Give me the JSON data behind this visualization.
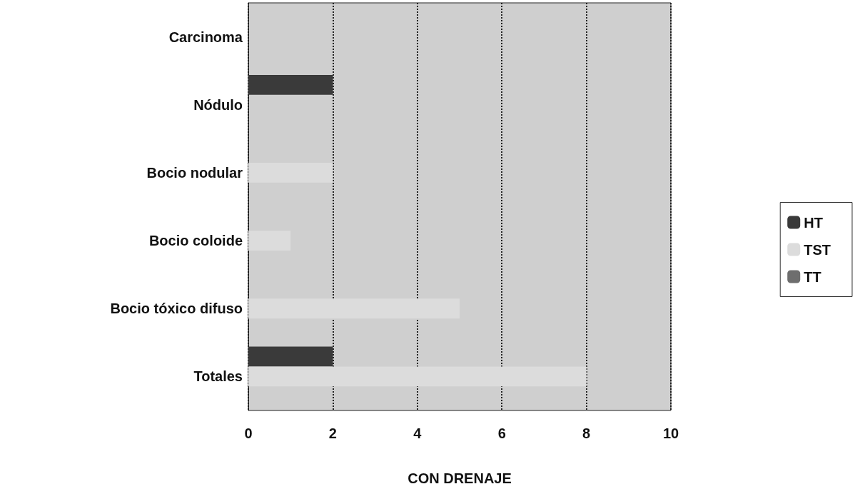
{
  "chart_data": {
    "type": "bar",
    "orientation": "horizontal",
    "xlabel": "CON DRENAJE",
    "categories": [
      "Carcinoma",
      "Nódulo",
      "Bocio nodular",
      "Bocio coloide",
      "Bocio tóxico difuso",
      "Totales"
    ],
    "series": [
      {
        "name": "HT",
        "color": "#3a3a3a",
        "values": [
          0,
          2,
          0,
          0,
          0,
          2
        ]
      },
      {
        "name": "TST",
        "color": "#dcdcdc",
        "values": [
          0,
          0,
          2,
          1,
          5,
          8
        ]
      },
      {
        "name": "TT",
        "color": "#6e6e6e",
        "values": [
          0,
          0,
          0,
          0,
          0,
          0
        ]
      }
    ],
    "xlim": [
      0,
      10
    ],
    "xticks": [
      0,
      2,
      4,
      6,
      8,
      10
    ],
    "grid": "x",
    "legend": "right"
  }
}
